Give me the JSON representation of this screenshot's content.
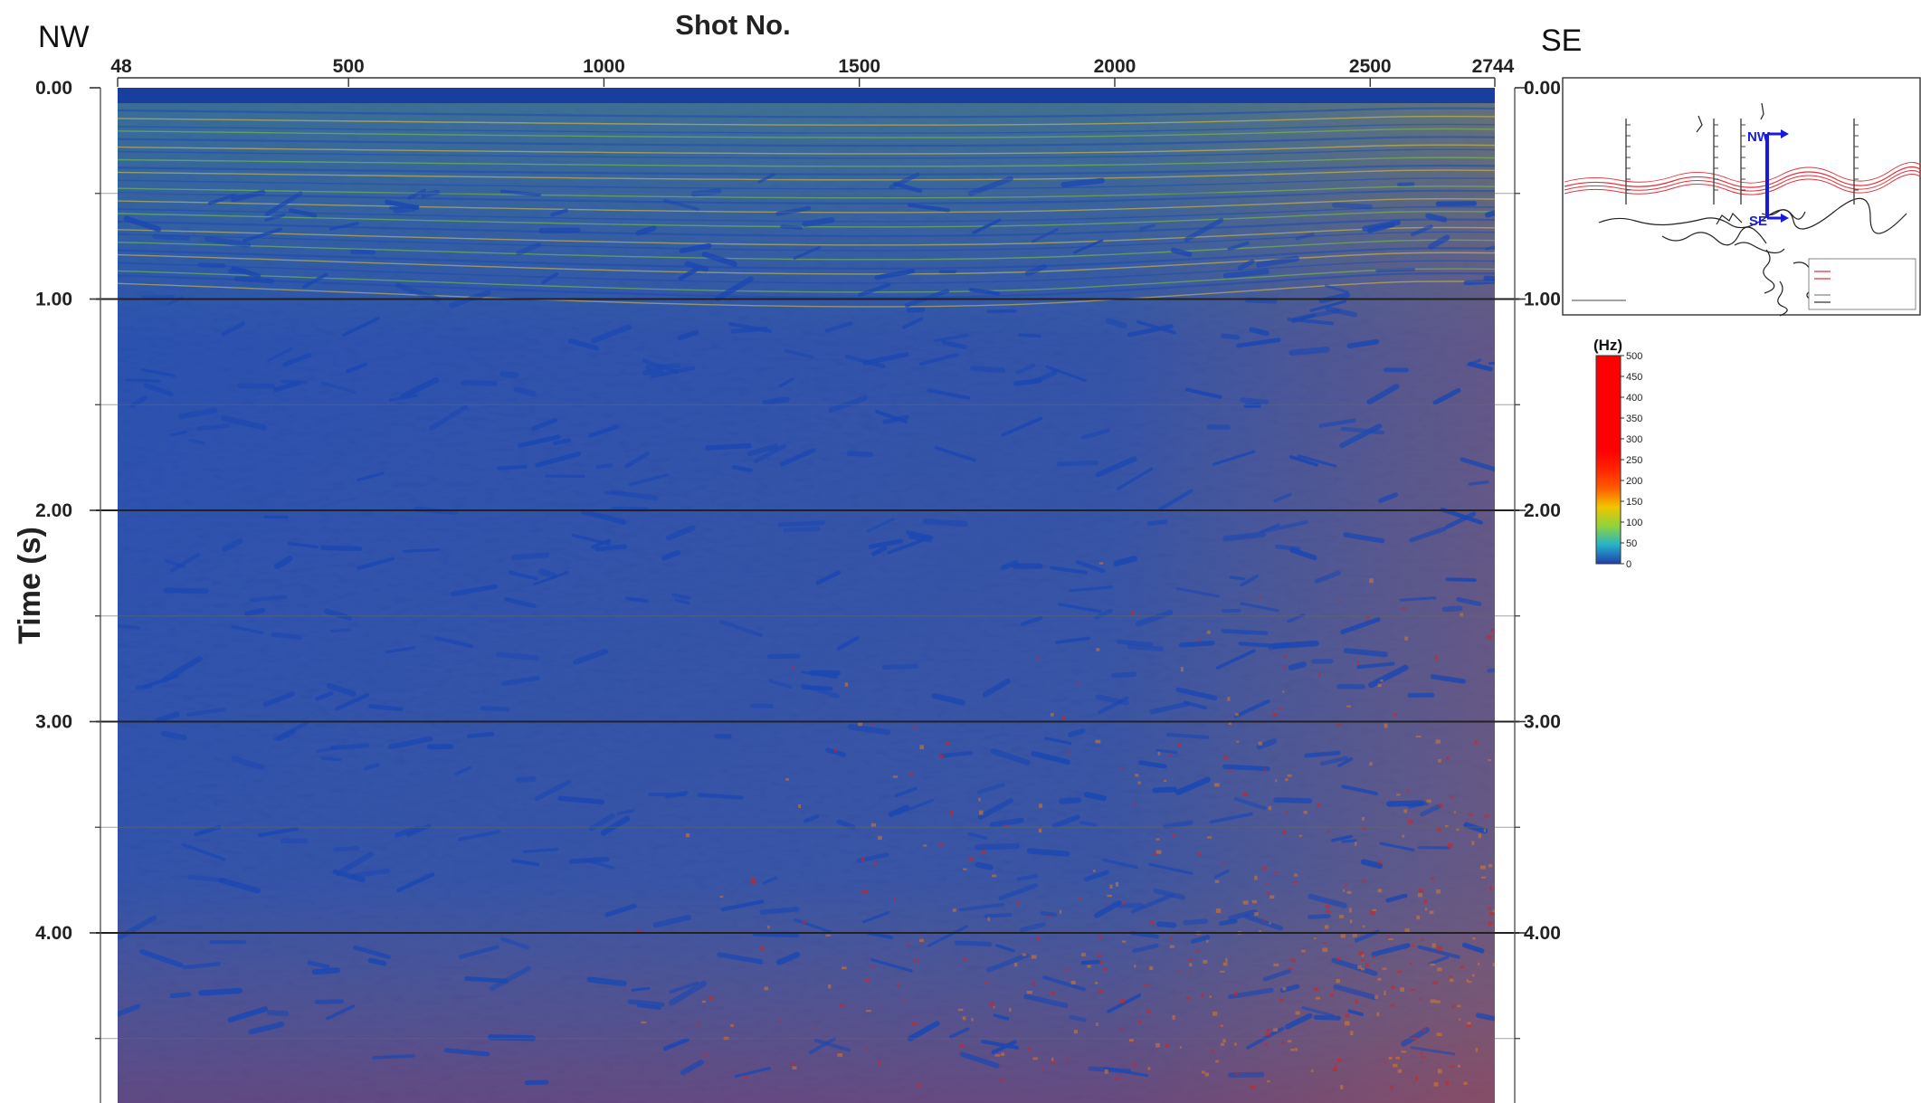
{
  "header": {
    "nw_label": "NW",
    "se_label": "SE",
    "top_axis_title": "Shot No.",
    "left_axis_title": "Time (s)"
  },
  "axes": {
    "shot_range": [
      48,
      2744
    ],
    "shot_ticks": [
      "48",
      "500",
      "1000",
      "1500",
      "2000",
      "2500",
      "2744"
    ],
    "shot_tick_values": [
      48,
      500,
      1000,
      1500,
      2000,
      2500,
      2744
    ],
    "time_range_s": [
      0.0,
      4.8
    ],
    "time_ticks": [
      "0.00",
      "1.00",
      "2.00",
      "3.00",
      "4.00"
    ],
    "time_tick_values": [
      0,
      1,
      2,
      3,
      4
    ],
    "minor_time_lines_s": [
      0.5,
      1.5,
      2.5,
      3.5,
      4.5
    ]
  },
  "legend": {
    "unit": "(Hz)",
    "labels": [
      "500",
      "450",
      "400",
      "350",
      "300",
      "250",
      "200",
      "150",
      "100",
      "50",
      "0"
    ],
    "colors": [
      "#ff0000",
      "#ff0000",
      "#ff0000",
      "#ff0000",
      "#ff0000",
      "#ff0000",
      "#ff2400",
      "#ff5a00",
      "#f2c400",
      "#8fd43a",
      "#26b3c9",
      "#1f3fae"
    ]
  },
  "inset_map": {
    "nw_label": "NW",
    "se_label": "SE",
    "arrow_color": "#1a1adc",
    "fault_color": "#e3323c",
    "coast_color": "#222222"
  },
  "colors": {
    "section_blue": "#1b48b3",
    "section_green": "#7fc842",
    "section_yellow": "#e3c93d",
    "section_orange": "#e07a24",
    "section_red": "#d4221e",
    "water_band": "#1a3e9e",
    "gridline": "#222222"
  }
}
